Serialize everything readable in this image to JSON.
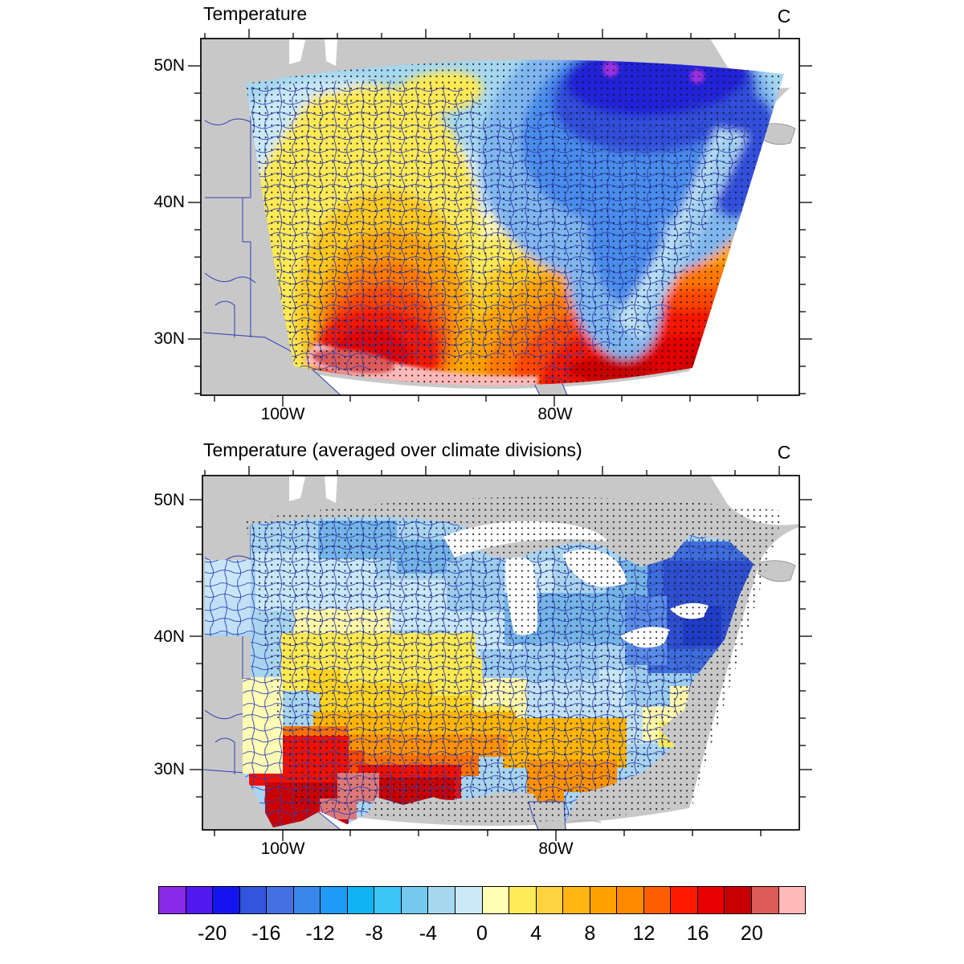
{
  "panels": [
    {
      "title": "Temperature",
      "unit": "C",
      "y_tick_labels": [
        "50N",
        "40N",
        "30N"
      ],
      "x_tick_labels": [
        "100W",
        "80W"
      ]
    },
    {
      "title": "Temperature (averaged over climate divisions)",
      "unit": "C",
      "y_tick_labels": [
        "50N",
        "40N",
        "30N"
      ],
      "x_tick_labels": [
        "100W",
        "80W"
      ]
    }
  ],
  "colorbar": {
    "labels": [
      "-20",
      "-16",
      "-12",
      "-8",
      "-4",
      "0",
      "4",
      "8",
      "12",
      "16",
      "20"
    ],
    "colors": [
      "#8A2BE8",
      "#5118F0",
      "#1414F0",
      "#3355DC",
      "#4570E1",
      "#3A87EC",
      "#1E9BF5",
      "#0FB4F5",
      "#3CC5F7",
      "#73C9EF",
      "#A5D8EF",
      "#CBE9F7",
      "#FFFFB4",
      "#FFEB57",
      "#FFD23F",
      "#FFB612",
      "#FFA200",
      "#FF8A00",
      "#FF5F00",
      "#FF1900",
      "#E80000",
      "#C60000",
      "#DC5A5A",
      "#FFB9B9"
    ]
  },
  "map_colors": {
    "land_gray": "#C8C8C8",
    "water_white": "#FFFFFF",
    "division_boundary_blue": "#2B3FB5",
    "stipple_black": "#141414",
    "frame_black": "#000000"
  },
  "chart_data": [
    {
      "type": "heatmap",
      "title": "Temperature",
      "units": "C",
      "projection_region": "eastern United States, roughly 27N-51N and 107W-65W",
      "y_axis": {
        "tick_labels": [
          "50N",
          "40N",
          "30N"
        ]
      },
      "x_axis": {
        "tick_labels": [
          "100W",
          "80W"
        ]
      },
      "contour_interval_c": 2,
      "colorbar_tick_values": [
        -20,
        -16,
        -12,
        -8,
        -4,
        0,
        4,
        8,
        12,
        16,
        20
      ],
      "stippled_grid_points": true,
      "overlays": [
        "climate division boundaries in blue",
        "state and coast outlines"
      ],
      "regional_values_c": {
        "quebec_cold_minimum": -22,
        "northeast_new_england": -14,
        "eastern_great_lakes": -8,
        "upper_midwest": -3,
        "northern_plains": -4,
        "lake_superior_warm_spot": 3,
        "central_plains": 5,
        "missouri_ozarks": 8,
        "mid_atlantic_coastal_strip": -1,
        "southern_plains_texas": 16,
        "gulf_coast": 20,
        "gulf_open_water_pink": 23,
        "southeast_atlantic_offshore": 18,
        "florida": 16
      }
    },
    {
      "type": "heatmap",
      "title": "Temperature (averaged over climate divisions)",
      "units": "C",
      "projection_region": "same domain; values averaged to flat colors over US climate divisions, non-US grid points left white/gray with stippling only",
      "y_axis": {
        "tick_labels": [
          "50N",
          "40N",
          "30N"
        ]
      },
      "x_axis": {
        "tick_labels": [
          "100W",
          "80W"
        ]
      },
      "contour_interval_c": 2,
      "colorbar_tick_values": [
        -20,
        -16,
        -12,
        -8,
        -4,
        0,
        4,
        8,
        12,
        16,
        20
      ],
      "stippled_grid_points": true,
      "overlays": [
        "climate division boundaries in blue"
      ],
      "regional_values_c": {
        "northern_minnesota": -6,
        "northern_plains": -3,
        "great_lakes_divisions": -6,
        "new_england_maine": -12,
        "new_york_interior_minimum": -16,
        "mid_atlantic": -6,
        "appalachians_carolinas": -2,
        "central_plains": 4,
        "midwest_corn_belt": 3,
        "ozarks_tennessee_valley": 8,
        "oklahoma_arkansas": 12,
        "deep_south_louisiana_mississippi": 16,
        "gulf_coast_divisions": 18,
        "south_texas": 22,
        "texas_coastal_salmon_division": 21,
        "florida_peninsula": 10
      }
    }
  ]
}
